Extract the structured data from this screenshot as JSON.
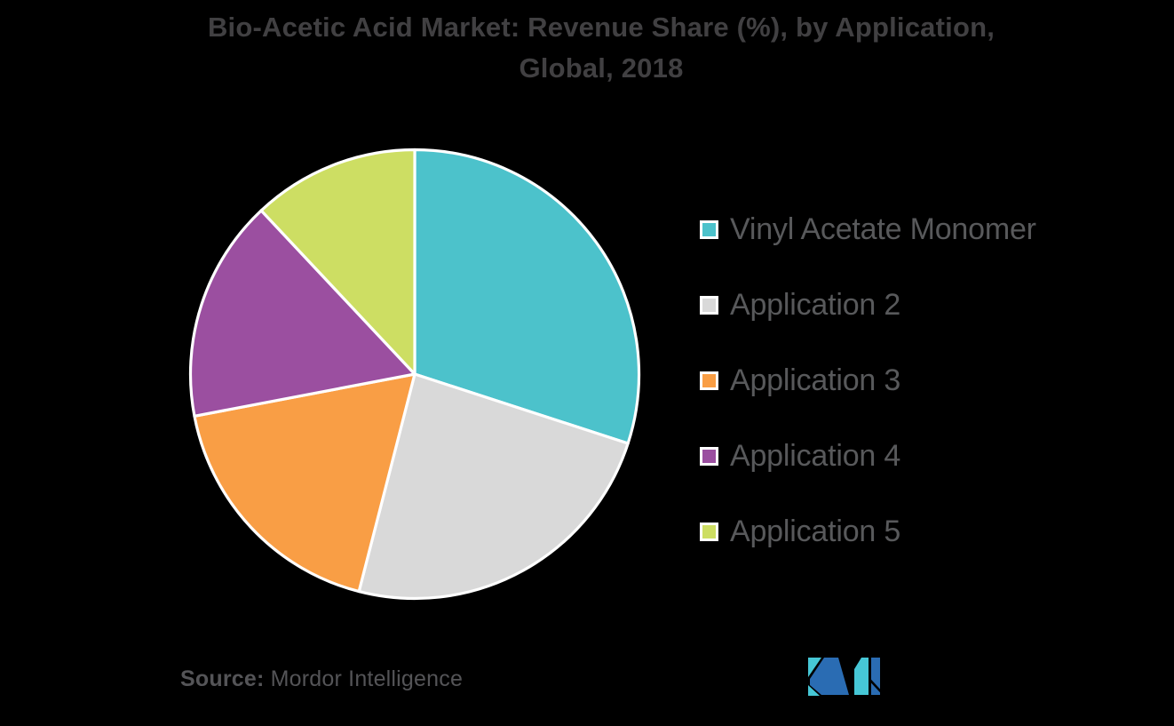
{
  "title": {
    "line1": "Bio-Acetic Acid Market: Revenue Share (%), by Application,",
    "line2": "Global, 2018"
  },
  "chart_data": {
    "type": "pie",
    "title": "Bio-Acetic Acid Market: Revenue Share (%), by Application, Global, 2018",
    "categories": [
      "Vinyl Acetate Monomer",
      "Application 2",
      "Application 3",
      "Application 4",
      "Application 5"
    ],
    "values": [
      30,
      24,
      18,
      16,
      12
    ],
    "unit": "percent-share",
    "colors": [
      "#4cc2cb",
      "#d9d9d9",
      "#f99e45",
      "#9b4fa0",
      "#cdde63"
    ],
    "start_angle_deg": 0,
    "direction": "clockwise",
    "slice_border_color": "#ffffff",
    "legend_position": "right",
    "data_labels_shown": false
  },
  "source": {
    "label": "Source:",
    "text": "Mordor Intelligence"
  },
  "logo": {
    "name": "mordor-intelligence-logo",
    "teal_color": "#46c7d6",
    "blue_color": "#2a6cb3"
  },
  "theme": {
    "background": "#000000",
    "title_color": "#414042",
    "legend_text_color": "#58595b",
    "source_text_color": "#545457"
  }
}
